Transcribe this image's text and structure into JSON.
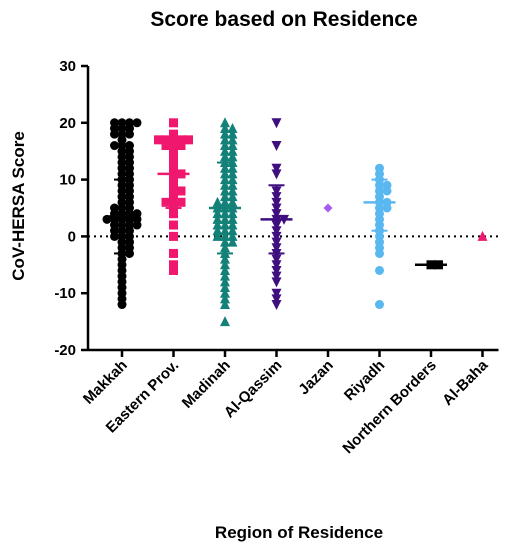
{
  "chart_data": {
    "type": "scatter",
    "title": "Score based on Residence",
    "xlabel": "Region of Residence",
    "ylabel": "CoV-HERSA Score",
    "ylim": [
      -20,
      30
    ],
    "yticks": [
      -20,
      -10,
      0,
      10,
      20,
      30
    ],
    "reference_line": {
      "y": 0,
      "style": "dotted"
    },
    "categories": [
      "Makkah",
      "Eastern Prov.",
      "Madinah",
      "Al-Qassim",
      "Jazan",
      "Riyadh",
      "Northern Borders",
      "Al-Baha"
    ],
    "series": [
      {
        "category": "Makkah",
        "marker": "circle",
        "color": "#000000",
        "mean": 3.5,
        "sd_low": -3,
        "sd_high": 10,
        "values": [
          20,
          20,
          20,
          20,
          19,
          19,
          19,
          18,
          18,
          18,
          17,
          16,
          16,
          16,
          15,
          15,
          14,
          14,
          13,
          13,
          12,
          12,
          11,
          11,
          10,
          10,
          9,
          9,
          8,
          8,
          7,
          7,
          6,
          6,
          5,
          5,
          5,
          4,
          4,
          4,
          4,
          3,
          3,
          3,
          3,
          3,
          2,
          2,
          2,
          2,
          1,
          1,
          1,
          0,
          0,
          0,
          -1,
          -1,
          -2,
          -2,
          -3,
          -3,
          -4,
          -5,
          -6,
          -7,
          -8,
          -9,
          -10,
          -11,
          -12
        ]
      },
      {
        "category": "Eastern Prov.",
        "marker": "square",
        "color": "#f0186e",
        "mean": 11,
        "sd_low": 5,
        "sd_high": 17,
        "values": [
          20,
          18,
          17,
          17,
          17,
          17,
          17,
          16,
          16,
          16,
          15,
          14,
          13,
          12,
          11,
          11,
          10,
          9,
          8,
          8,
          7,
          6,
          6,
          6,
          5,
          4,
          2,
          0,
          -3,
          -5,
          -6
        ]
      },
      {
        "category": "Madinah",
        "marker": "triangle-up",
        "color": "#138178",
        "mean": 5,
        "sd_low": -3,
        "sd_high": 13,
        "values": [
          20,
          19,
          19,
          18,
          18,
          17,
          17,
          16,
          16,
          15,
          15,
          14,
          14,
          13,
          13,
          12,
          12,
          11,
          11,
          10,
          10,
          9,
          9,
          8,
          8,
          7,
          7,
          6,
          6,
          6,
          5,
          5,
          5,
          4,
          4,
          4,
          3,
          3,
          3,
          2,
          2,
          2,
          1,
          1,
          1,
          0,
          0,
          0,
          -1,
          -1,
          -2,
          -3,
          -4,
          -5,
          -6,
          -7,
          -8,
          -9,
          -10,
          -11,
          -12,
          -15
        ]
      },
      {
        "category": "Al-Qassim",
        "marker": "triangle-down",
        "color": "#3f0f7f",
        "mean": 3,
        "sd_low": -3,
        "sd_high": 9,
        "values": [
          20,
          16,
          12,
          11,
          8,
          7,
          6,
          5,
          4,
          3,
          3,
          2,
          1,
          0,
          -1,
          -2,
          -3,
          -4,
          -5,
          -6,
          -7,
          -8,
          -10,
          -11,
          -12
        ]
      },
      {
        "category": "Jazan",
        "marker": "diamond",
        "color": "#a65bf0",
        "values": [
          5
        ]
      },
      {
        "category": "Riyadh",
        "marker": "circle",
        "color": "#5ab8f0",
        "mean": 6,
        "sd_low": 1,
        "sd_high": 10,
        "values": [
          12,
          11,
          10,
          9,
          9,
          8,
          8,
          7,
          6,
          6,
          5,
          5,
          4,
          3,
          2,
          1,
          0,
          -1,
          -2,
          -3,
          -6,
          -12
        ]
      },
      {
        "category": "Northern Borders",
        "marker": "square",
        "color": "#000000",
        "mean": -5,
        "values": [
          -5,
          -5
        ]
      },
      {
        "category": "Al-Baha",
        "marker": "triangle-up",
        "color": "#f0186e",
        "values": [
          0
        ]
      }
    ]
  }
}
